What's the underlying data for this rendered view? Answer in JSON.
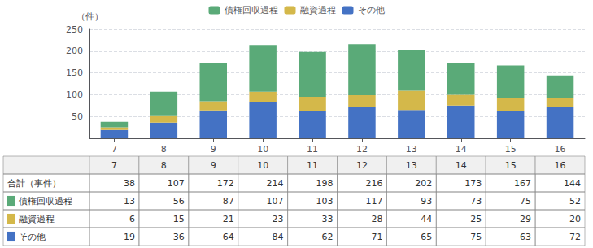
{
  "chart_data": {
    "type": "bar",
    "stacked": true,
    "ylabel": "（件）",
    "categories": [
      "7",
      "8",
      "9",
      "10",
      "11",
      "12",
      "13",
      "14",
      "15",
      "16"
    ],
    "series": [
      {
        "name": "その他",
        "color": "#4472c4",
        "values": [
          19,
          36,
          64,
          84,
          62,
          71,
          65,
          75,
          63,
          72
        ]
      },
      {
        "name": "融資過程",
        "color": "#d4b84a",
        "values": [
          6,
          15,
          21,
          23,
          33,
          28,
          44,
          25,
          29,
          20
        ]
      },
      {
        "name": "債権回収過程",
        "color": "#5aaa78",
        "values": [
          13,
          56,
          87,
          107,
          103,
          117,
          93,
          73,
          75,
          52
        ]
      }
    ],
    "totals_label": "合計（事件）",
    "totals": [
      38,
      107,
      172,
      214,
      198,
      216,
      202,
      173,
      167,
      144
    ],
    "ylim": [
      0,
      250
    ],
    "yticks": [
      50,
      100,
      150,
      200,
      250
    ],
    "grid": true,
    "legend": "top"
  }
}
